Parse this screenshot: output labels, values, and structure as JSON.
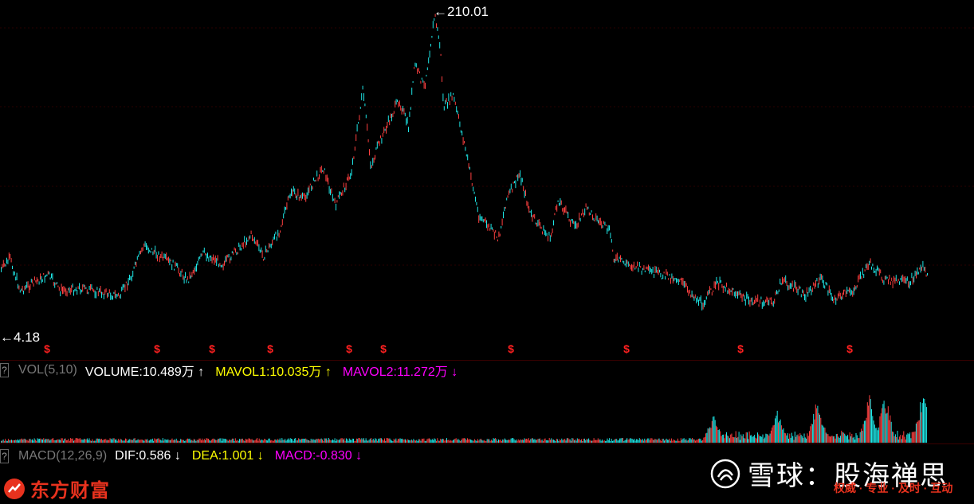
{
  "chart": {
    "peak_label": "←210.01",
    "low_label": "←4.18",
    "event_marker": "$",
    "colors": {
      "up": "#ff4040",
      "down": "#1ee6e6",
      "grid": "#2a0000",
      "marker": "#ff2020"
    }
  },
  "vol_indicator": {
    "help": "?",
    "name": "VOL(5,10)",
    "volume": {
      "text": "VOLUME:10.489万",
      "arrow": "↑",
      "color": "#ffffff"
    },
    "mavol1": {
      "text": "MAVOL1:10.035万",
      "arrow": "↑",
      "color": "#ffff00"
    },
    "mavol2": {
      "text": "MAVOL2:11.272万",
      "arrow": "↓",
      "color": "#ff00ff"
    }
  },
  "macd_indicator": {
    "help": "?",
    "name": "MACD(12,26,9)",
    "dif": {
      "text": "DIF:0.586",
      "arrow": "↓",
      "color": "#ffffff"
    },
    "dea": {
      "text": "DEA:1.001",
      "arrow": "↓",
      "color": "#ffff00"
    },
    "macd": {
      "text": "MACD:-0.830",
      "arrow": "↓",
      "color": "#ff00ff"
    }
  },
  "logo": {
    "text": "东方财富"
  },
  "watermark": {
    "brand": "雪球：股海禅思",
    "slogan": "权威 · 专业 · 及时 · 互动"
  }
}
